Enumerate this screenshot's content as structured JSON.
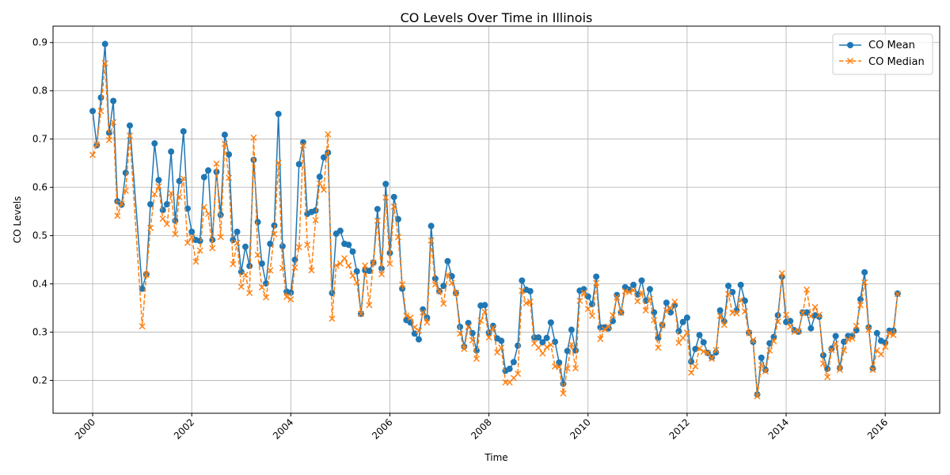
{
  "chart_data": {
    "type": "line",
    "title": "CO Levels Over Time in Illinois",
    "xlabel": "Time",
    "ylabel": "CO Levels",
    "x_ticks": [
      "2000",
      "2002",
      "2004",
      "2006",
      "2008",
      "2010",
      "2012",
      "2014",
      "2016"
    ],
    "y_ticks": [
      "0.2",
      "0.3",
      "0.4",
      "0.5",
      "0.6",
      "0.7",
      "0.8",
      "0.9"
    ],
    "xlim": [
      1999.2,
      2017.1
    ],
    "ylim": [
      0.132,
      0.934
    ],
    "grid": true,
    "legend_position": "top-right",
    "x_start": 2000,
    "x_step_months": 1,
    "series": [
      {
        "name": "CO Mean",
        "color": "#1f77b4",
        "style": "solid",
        "marker": "circle",
        "values": [
          0.758,
          0.687,
          0.786,
          0.897,
          0.713,
          0.779,
          0.571,
          0.564,
          0.63,
          0.728,
          null,
          null,
          0.39,
          0.42,
          0.565,
          0.691,
          0.615,
          0.553,
          0.565,
          0.674,
          0.531,
          0.613,
          0.716,
          0.556,
          0.508,
          0.491,
          0.489,
          0.621,
          0.635,
          0.491,
          0.632,
          0.543,
          0.709,
          0.668,
          0.491,
          0.508,
          0.425,
          0.477,
          0.437,
          0.657,
          0.528,
          0.442,
          0.401,
          0.483,
          0.521,
          0.752,
          0.478,
          0.384,
          0.382,
          0.45,
          0.648,
          0.693,
          0.545,
          0.549,
          0.552,
          0.622,
          0.662,
          0.672,
          0.381,
          0.504,
          0.51,
          0.483,
          0.481,
          0.467,
          0.426,
          0.338,
          0.428,
          0.427,
          0.444,
          0.555,
          0.432,
          0.607,
          0.464,
          0.58,
          0.534,
          0.39,
          0.325,
          0.32,
          0.297,
          0.285,
          0.347,
          0.33,
          0.52,
          0.411,
          0.385,
          0.396,
          0.447,
          0.416,
          0.381,
          0.311,
          0.27,
          0.319,
          0.298,
          0.262,
          0.355,
          0.356,
          0.299,
          0.313,
          0.287,
          0.282,
          0.22,
          0.224,
          0.238,
          0.272,
          0.407,
          0.388,
          0.385,
          0.289,
          0.289,
          0.279,
          0.288,
          0.32,
          0.28,
          0.237,
          0.193,
          0.261,
          0.305,
          0.262,
          0.386,
          0.389,
          0.374,
          0.358,
          0.415,
          0.31,
          0.31,
          0.308,
          0.323,
          0.377,
          0.341,
          0.393,
          0.388,
          0.398,
          0.378,
          0.407,
          0.365,
          0.389,
          0.341,
          0.288,
          0.315,
          0.361,
          0.341,
          0.356,
          0.302,
          0.321,
          0.33,
          0.239,
          0.265,
          0.294,
          0.279,
          0.257,
          0.248,
          0.258,
          0.345,
          0.322,
          0.396,
          0.383,
          0.345,
          0.398,
          0.365,
          0.299,
          0.28,
          0.171,
          0.247,
          0.222,
          0.277,
          0.29,
          0.335,
          0.415,
          0.321,
          0.323,
          0.304,
          0.301,
          0.341,
          0.341,
          0.308,
          0.335,
          0.332,
          0.252,
          0.224,
          0.266,
          0.292,
          0.226,
          0.28,
          0.292,
          0.292,
          0.304,
          0.368,
          0.424,
          0.31,
          0.225,
          0.298,
          0.282,
          0.278,
          0.303,
          0.303,
          0.38
        ]
      },
      {
        "name": "CO Median",
        "color": "#ff7f0e",
        "style": "dashed",
        "marker": "x",
        "values": [
          0.667,
          0.689,
          0.758,
          0.857,
          0.698,
          0.735,
          0.541,
          0.566,
          0.593,
          0.707,
          null,
          null,
          0.312,
          0.419,
          0.516,
          0.586,
          0.602,
          0.535,
          0.524,
          0.588,
          0.503,
          0.58,
          0.618,
          0.485,
          0.497,
          0.446,
          0.469,
          0.559,
          0.545,
          0.474,
          0.649,
          0.497,
          0.69,
          0.62,
          0.441,
          0.485,
          0.394,
          0.419,
          0.381,
          0.703,
          0.46,
          0.393,
          0.372,
          0.428,
          0.503,
          0.651,
          0.433,
          0.373,
          0.368,
          0.434,
          0.476,
          0.687,
          0.481,
          0.428,
          0.532,
          0.608,
          0.595,
          0.71,
          0.328,
          0.438,
          0.442,
          0.453,
          0.438,
          0.417,
          0.403,
          0.338,
          0.438,
          0.356,
          0.444,
          0.531,
          0.42,
          0.579,
          0.442,
          0.56,
          0.497,
          0.399,
          0.334,
          0.33,
          0.31,
          0.303,
          0.341,
          0.32,
          0.49,
          0.399,
          0.385,
          0.359,
          0.419,
          0.402,
          0.382,
          0.297,
          0.265,
          0.311,
          0.283,
          0.245,
          0.324,
          0.342,
          0.289,
          0.309,
          0.258,
          0.268,
          0.196,
          0.196,
          0.205,
          0.214,
          0.386,
          0.36,
          0.363,
          0.277,
          0.268,
          0.256,
          0.269,
          0.274,
          0.229,
          0.228,
          0.173,
          0.225,
          0.275,
          0.225,
          0.365,
          0.382,
          0.348,
          0.334,
          0.402,
          0.286,
          0.306,
          0.311,
          0.335,
          0.372,
          0.34,
          0.385,
          0.383,
          0.387,
          0.364,
          0.382,
          0.345,
          0.369,
          0.325,
          0.268,
          0.314,
          0.345,
          0.35,
          0.363,
          0.278,
          0.288,
          0.299,
          0.216,
          0.229,
          0.266,
          0.26,
          0.257,
          0.245,
          0.263,
          0.334,
          0.315,
          0.379,
          0.34,
          0.339,
          0.367,
          0.343,
          0.298,
          0.284,
          0.167,
          0.232,
          0.219,
          0.262,
          0.281,
          0.322,
          0.422,
          0.336,
          0.311,
          0.301,
          0.302,
          0.339,
          0.388,
          0.333,
          0.352,
          0.336,
          0.235,
          0.207,
          0.263,
          0.276,
          0.222,
          0.262,
          0.285,
          0.287,
          0.313,
          0.356,
          0.403,
          0.305,
          0.222,
          0.262,
          0.254,
          0.27,
          0.298,
          0.294,
          0.379
        ]
      }
    ]
  }
}
